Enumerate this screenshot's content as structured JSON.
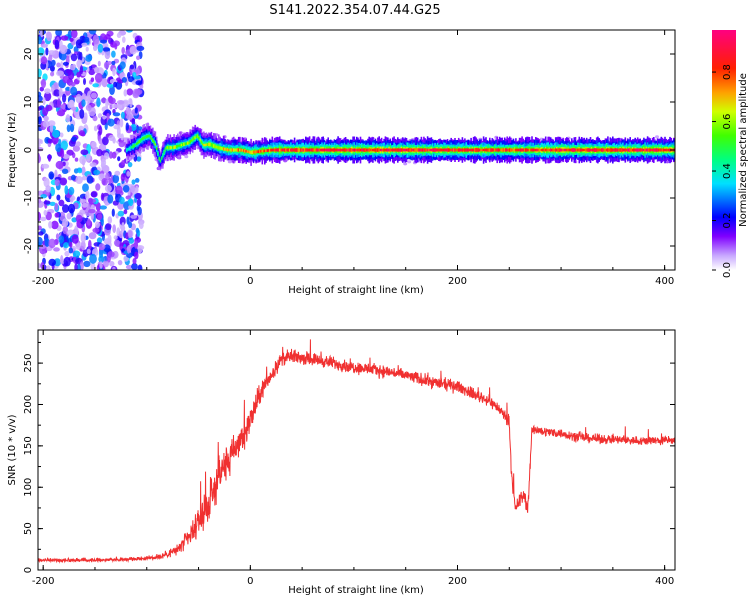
{
  "title": "S141.2022.354.07.44.G25",
  "chart_data": [
    {
      "type": "heatmap",
      "xlabel": "Height of straight line (km)",
      "ylabel": "Frequency (Hz)",
      "xlim": [
        -205,
        410
      ],
      "ylim": [
        -25,
        25
      ],
      "xticks": [
        "-200",
        "0",
        "200",
        "400"
      ],
      "yticks": [
        "-20",
        "-10",
        "0",
        "10",
        "20"
      ],
      "colorbar": {
        "label": "Normalized spectral amplitude",
        "range": [
          0.0,
          0.97
        ],
        "ticks": [
          "0.0",
          "0.2",
          "0.4",
          "0.6",
          "0.8"
        ]
      },
      "noise_region": {
        "x_range": [
          -205,
          -105
        ],
        "y_range": [
          -25,
          25
        ],
        "amplitude": [
          0.05,
          0.35
        ]
      },
      "ridge": [
        {
          "x": -120,
          "y": 0.0,
          "amp": 0.35
        },
        {
          "x": -112,
          "y": 1.0,
          "amp": 0.5
        },
        {
          "x": -104,
          "y": 2.5,
          "amp": 0.55
        },
        {
          "x": -98,
          "y": 3.0,
          "amp": 0.5
        },
        {
          "x": -92,
          "y": 1.0,
          "amp": 0.55
        },
        {
          "x": -88,
          "y": -2.5,
          "amp": 0.45
        },
        {
          "x": -82,
          "y": 0.5,
          "amp": 0.55
        },
        {
          "x": -75,
          "y": 0.5,
          "amp": 0.6
        },
        {
          "x": -68,
          "y": 1.0,
          "amp": 0.6
        },
        {
          "x": -60,
          "y": 1.5,
          "amp": 0.6
        },
        {
          "x": -52,
          "y": 3.0,
          "amp": 0.6
        },
        {
          "x": -46,
          "y": 1.0,
          "amp": 0.62
        },
        {
          "x": -40,
          "y": 1.2,
          "amp": 0.62
        },
        {
          "x": -32,
          "y": 0.5,
          "amp": 0.65
        },
        {
          "x": -22,
          "y": 0.0,
          "amp": 0.7
        },
        {
          "x": -10,
          "y": 0.0,
          "amp": 0.75
        },
        {
          "x": 0,
          "y": -0.5,
          "amp": 0.75
        },
        {
          "x": 20,
          "y": 0.0,
          "amp": 0.8
        },
        {
          "x": 50,
          "y": 0.0,
          "amp": 0.85
        },
        {
          "x": 100,
          "y": 0.0,
          "amp": 0.88
        },
        {
          "x": 150,
          "y": 0.0,
          "amp": 0.88
        },
        {
          "x": 200,
          "y": 0.0,
          "amp": 0.85
        },
        {
          "x": 250,
          "y": 0.0,
          "amp": 0.83
        },
        {
          "x": 300,
          "y": 0.0,
          "amp": 0.88
        },
        {
          "x": 350,
          "y": 0.0,
          "amp": 0.88
        },
        {
          "x": 410,
          "y": 0.0,
          "amp": 0.88
        }
      ]
    },
    {
      "type": "line",
      "xlabel": "Height of straight line (km)",
      "ylabel": "SNR (10 * v/v)",
      "xlim": [
        -205,
        410
      ],
      "ylim": [
        0,
        290
      ],
      "xticks": [
        "-200",
        "0",
        "200",
        "400"
      ],
      "yticks": [
        "0",
        "50",
        "100",
        "150",
        "200",
        "250"
      ],
      "color": "#f03030",
      "series": [
        {
          "x": [
            -205,
            -180,
            -150,
            -120,
            -100,
            -85,
            -70,
            -55,
            -40,
            -30,
            -20,
            -10,
            0,
            10,
            20,
            30,
            40,
            60,
            80,
            100,
            120,
            140,
            160,
            180,
            200,
            210,
            220,
            230,
            240,
            250,
            252,
            256,
            260,
            264,
            268,
            272,
            276,
            280,
            300,
            320,
            340,
            360,
            380,
            410
          ],
          "y": [
            12,
            12,
            12,
            13,
            14,
            17,
            25,
            45,
            80,
            115,
            135,
            155,
            180,
            215,
            235,
            255,
            258,
            255,
            250,
            245,
            242,
            238,
            232,
            226,
            222,
            216,
            210,
            205,
            195,
            180,
            120,
            70,
            85,
            90,
            75,
            170,
            170,
            168,
            165,
            160,
            158,
            157,
            156,
            157
          ],
          "noise": [
            3,
            3,
            3,
            3,
            4,
            6,
            10,
            20,
            30,
            32,
            30,
            28,
            25,
            18,
            14,
            12,
            12,
            11,
            11,
            11,
            11,
            11,
            11,
            11,
            10,
            10,
            10,
            10,
            10,
            10,
            12,
            14,
            14,
            14,
            14,
            10,
            9,
            8,
            8,
            8,
            8,
            8,
            8,
            8
          ]
        }
      ]
    }
  ]
}
